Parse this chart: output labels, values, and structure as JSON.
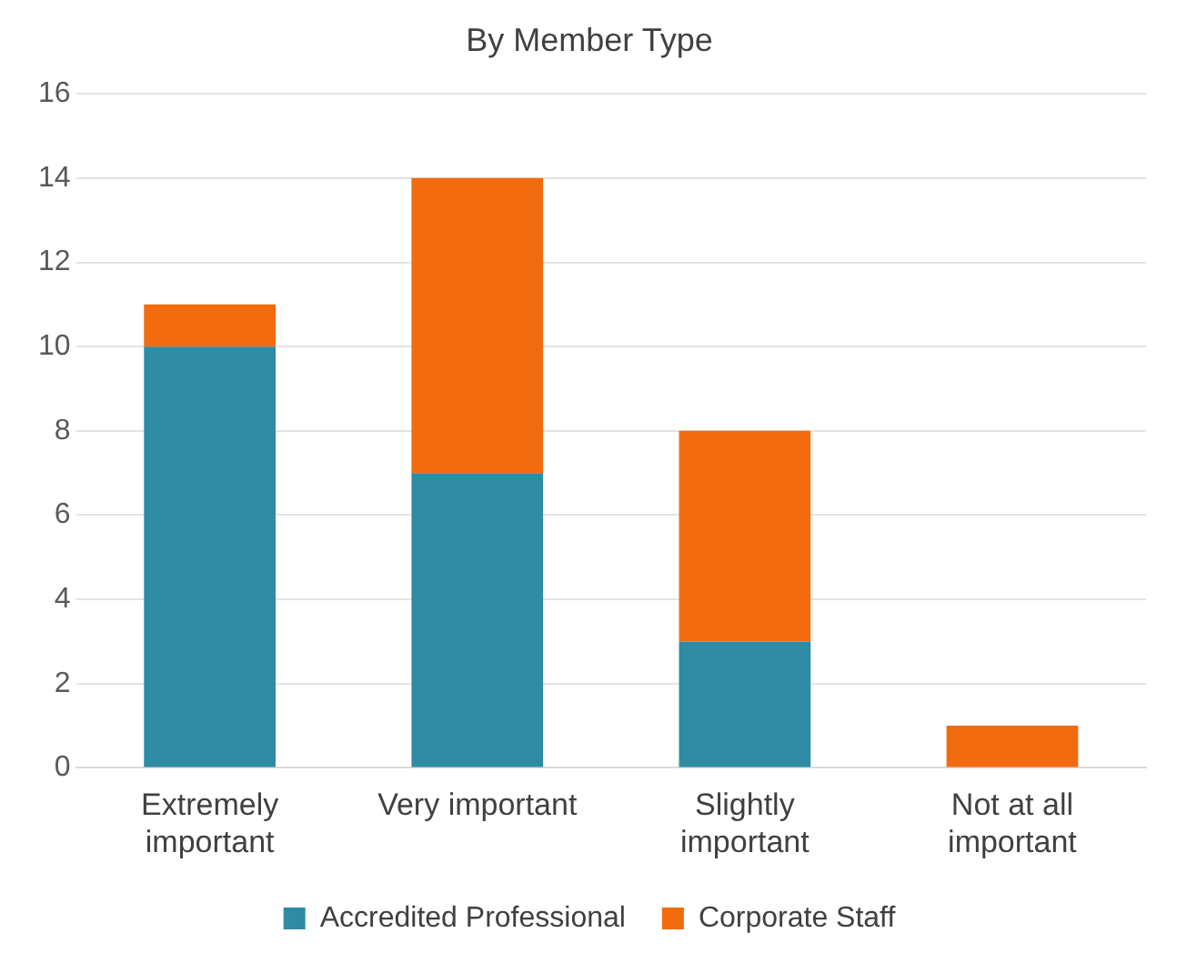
{
  "chart_data": {
    "type": "bar",
    "title": "By Member Type",
    "categories": [
      "Extremely important",
      "Very important",
      "Slightly important",
      "Not at all important"
    ],
    "series": [
      {
        "name": "Accredited Professional",
        "color": "#2e8ba3",
        "values": [
          10,
          7,
          3,
          0
        ]
      },
      {
        "name": "Corporate Staff",
        "color": "#f26b0f",
        "values": [
          1,
          7,
          5,
          1
        ]
      }
    ],
    "stacked": true,
    "ylim": [
      0,
      16
    ],
    "yticks": [
      0,
      2,
      4,
      6,
      8,
      10,
      12,
      14,
      16
    ],
    "grid": "y",
    "legend": "bottom"
  }
}
